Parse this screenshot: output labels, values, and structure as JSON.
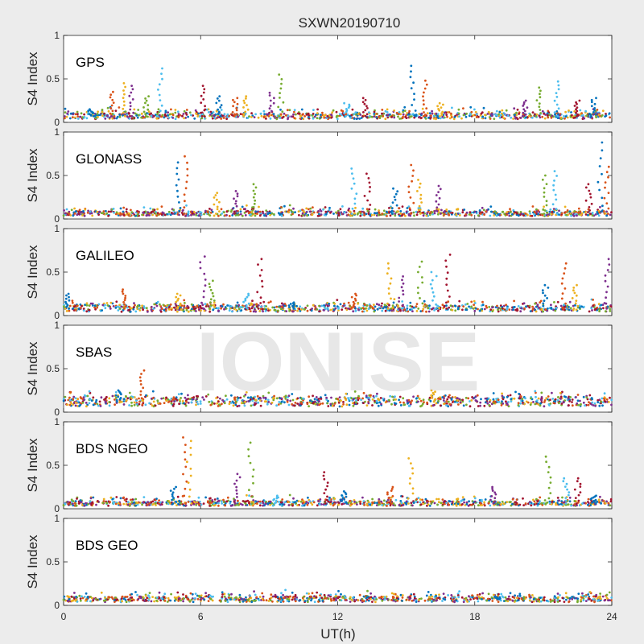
{
  "title": "SXWN20190710",
  "watermark": "IONISE",
  "x_axis": {
    "label": "UT(h)",
    "ticks": [
      0,
      6,
      12,
      18,
      24
    ],
    "range": [
      0,
      24
    ]
  },
  "y_axis": {
    "label": "S4 Index",
    "ticks": [
      0,
      0.5,
      1
    ],
    "tick_labels": [
      "0",
      "0.5",
      "1"
    ],
    "range": [
      0,
      1
    ]
  },
  "series_colors": [
    "#0072BD",
    "#D95319",
    "#EDB120",
    "#7E2F8E",
    "#77AC30",
    "#4DBEEE",
    "#A2142F"
  ],
  "chart_data": [
    {
      "type": "scatter",
      "panel": "GPS",
      "xlabel": "",
      "ylabel": "S4 Index",
      "xlim": [
        0,
        24
      ],
      "ylim": [
        0,
        1
      ],
      "baseline": 0.07,
      "spikes": [
        [
          1.2,
          0.15
        ],
        [
          2.1,
          0.35
        ],
        [
          2.6,
          0.45
        ],
        [
          3.0,
          0.42
        ],
        [
          3.6,
          0.3
        ],
        [
          4.2,
          0.62
        ],
        [
          6.1,
          0.42
        ],
        [
          6.8,
          0.3
        ],
        [
          7.5,
          0.28
        ],
        [
          8.0,
          0.3
        ],
        [
          9.1,
          0.34
        ],
        [
          9.5,
          0.55
        ],
        [
          12.4,
          0.22
        ],
        [
          13.2,
          0.28
        ],
        [
          15.3,
          0.65
        ],
        [
          15.8,
          0.48
        ],
        [
          16.5,
          0.22
        ],
        [
          20.2,
          0.25
        ],
        [
          20.8,
          0.4
        ],
        [
          21.6,
          0.47
        ],
        [
          22.5,
          0.25
        ],
        [
          23.2,
          0.28
        ]
      ]
    },
    {
      "type": "scatter",
      "panel": "GLONASS",
      "xlabel": "",
      "ylabel": "S4 Index",
      "xlim": [
        0,
        24
      ],
      "ylim": [
        0,
        1
      ],
      "baseline": 0.06,
      "spikes": [
        [
          5.0,
          0.65
        ],
        [
          5.3,
          0.72
        ],
        [
          6.7,
          0.3
        ],
        [
          7.5,
          0.32
        ],
        [
          8.3,
          0.4
        ],
        [
          12.7,
          0.58
        ],
        [
          13.3,
          0.52
        ],
        [
          14.5,
          0.35
        ],
        [
          15.2,
          0.62
        ],
        [
          15.6,
          0.45
        ],
        [
          16.4,
          0.38
        ],
        [
          21.1,
          0.5
        ],
        [
          21.5,
          0.55
        ],
        [
          23.0,
          0.4
        ],
        [
          23.5,
          0.88
        ],
        [
          23.8,
          0.6
        ]
      ]
    },
    {
      "type": "scatter",
      "panel": "GALILEO",
      "xlabel": "",
      "ylabel": "S4 Index",
      "xlim": [
        0,
        24
      ],
      "ylim": [
        0,
        1
      ],
      "baseline": 0.08,
      "spikes": [
        [
          0.2,
          0.25
        ],
        [
          2.7,
          0.3
        ],
        [
          5.0,
          0.25
        ],
        [
          6.1,
          0.68
        ],
        [
          6.5,
          0.4
        ],
        [
          8.0,
          0.25
        ],
        [
          8.6,
          0.65
        ],
        [
          10.0,
          0.15
        ],
        [
          12.7,
          0.25
        ],
        [
          14.3,
          0.6
        ],
        [
          14.8,
          0.45
        ],
        [
          15.6,
          0.62
        ],
        [
          16.2,
          0.5
        ],
        [
          16.8,
          0.7
        ],
        [
          21.1,
          0.35
        ],
        [
          21.9,
          0.6
        ],
        [
          22.4,
          0.35
        ],
        [
          23.8,
          0.65
        ]
      ]
    },
    {
      "type": "scatter",
      "panel": "SBAS",
      "xlabel": "",
      "ylabel": "S4 Index",
      "xlim": [
        0,
        24
      ],
      "ylim": [
        0,
        1
      ],
      "baseline": 0.12,
      "spikes": [
        [
          2.4,
          0.25
        ],
        [
          3.4,
          0.48
        ],
        [
          16.2,
          0.25
        ]
      ]
    },
    {
      "type": "scatter",
      "panel": "BDS NGEO",
      "xlabel": "",
      "ylabel": "S4 Index",
      "xlim": [
        0,
        24
      ],
      "ylim": [
        0,
        1
      ],
      "baseline": 0.06,
      "spikes": [
        [
          4.8,
          0.25
        ],
        [
          5.3,
          0.82
        ],
        [
          5.5,
          0.78
        ],
        [
          7.6,
          0.4
        ],
        [
          8.2,
          0.76
        ],
        [
          9.3,
          0.15
        ],
        [
          11.5,
          0.42
        ],
        [
          12.3,
          0.2
        ],
        [
          14.3,
          0.25
        ],
        [
          15.2,
          0.58
        ],
        [
          18.8,
          0.25
        ],
        [
          21.2,
          0.6
        ],
        [
          22.0,
          0.35
        ],
        [
          22.5,
          0.35
        ],
        [
          23.2,
          0.15
        ]
      ]
    },
    {
      "type": "scatter",
      "panel": "BDS GEO",
      "xlabel": "UT(h)",
      "ylabel": "S4 Index",
      "xlim": [
        0,
        24
      ],
      "ylim": [
        0,
        1
      ],
      "baseline": 0.07,
      "spikes": [
        [
          19.0,
          0.1
        ]
      ]
    }
  ]
}
